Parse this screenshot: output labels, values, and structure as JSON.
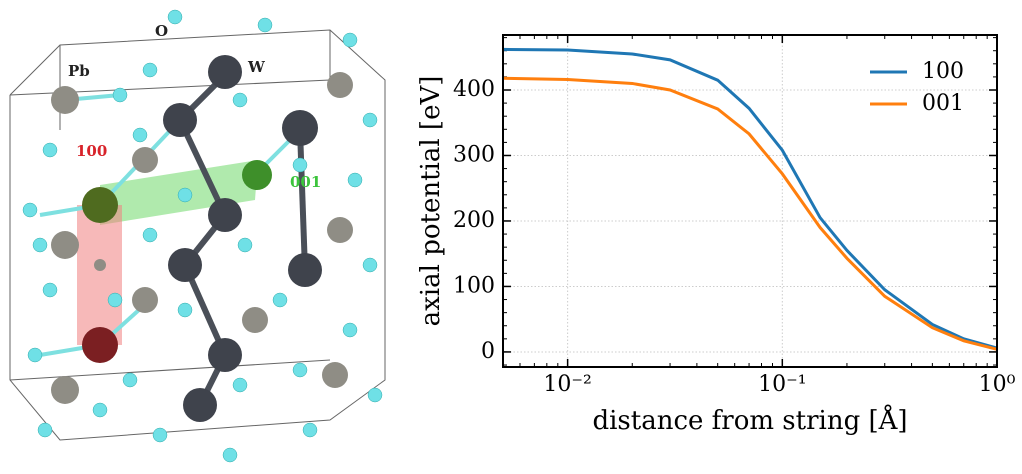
{
  "structure": {
    "labels": {
      "pb": "Pb",
      "o": "O",
      "w": "W",
      "dir_100": "100",
      "dir_001": "001"
    }
  },
  "chart_data": {
    "type": "line",
    "xlabel": "distance from string [Å]",
    "ylabel": "axial potential [eV]",
    "xscale": "log",
    "xlim": [
      0.005,
      1
    ],
    "ylim": [
      -23,
      484
    ],
    "xticks": [
      {
        "value": 0.01,
        "label": "10⁻²"
      },
      {
        "value": 0.1,
        "label": "10⁻¹"
      },
      {
        "value": 1,
        "label": "10⁰"
      }
    ],
    "yticks": [
      0,
      100,
      200,
      300,
      400
    ],
    "grid": true,
    "legend": "upper right",
    "x": [
      0.005,
      0.01,
      0.02,
      0.03,
      0.05,
      0.07,
      0.1,
      0.15,
      0.2,
      0.3,
      0.5,
      0.7,
      1.0
    ],
    "series": [
      {
        "name": "100",
        "color": "#1f77b4",
        "values": [
          462,
          461,
          455,
          446,
          415,
          372,
          308,
          205,
          155,
          95,
          42,
          20,
          6
        ]
      },
      {
        "name": "001",
        "color": "#ff7f0e",
        "values": [
          418,
          416,
          410,
          400,
          371,
          333,
          272,
          190,
          143,
          85,
          37,
          17,
          4
        ]
      }
    ]
  }
}
